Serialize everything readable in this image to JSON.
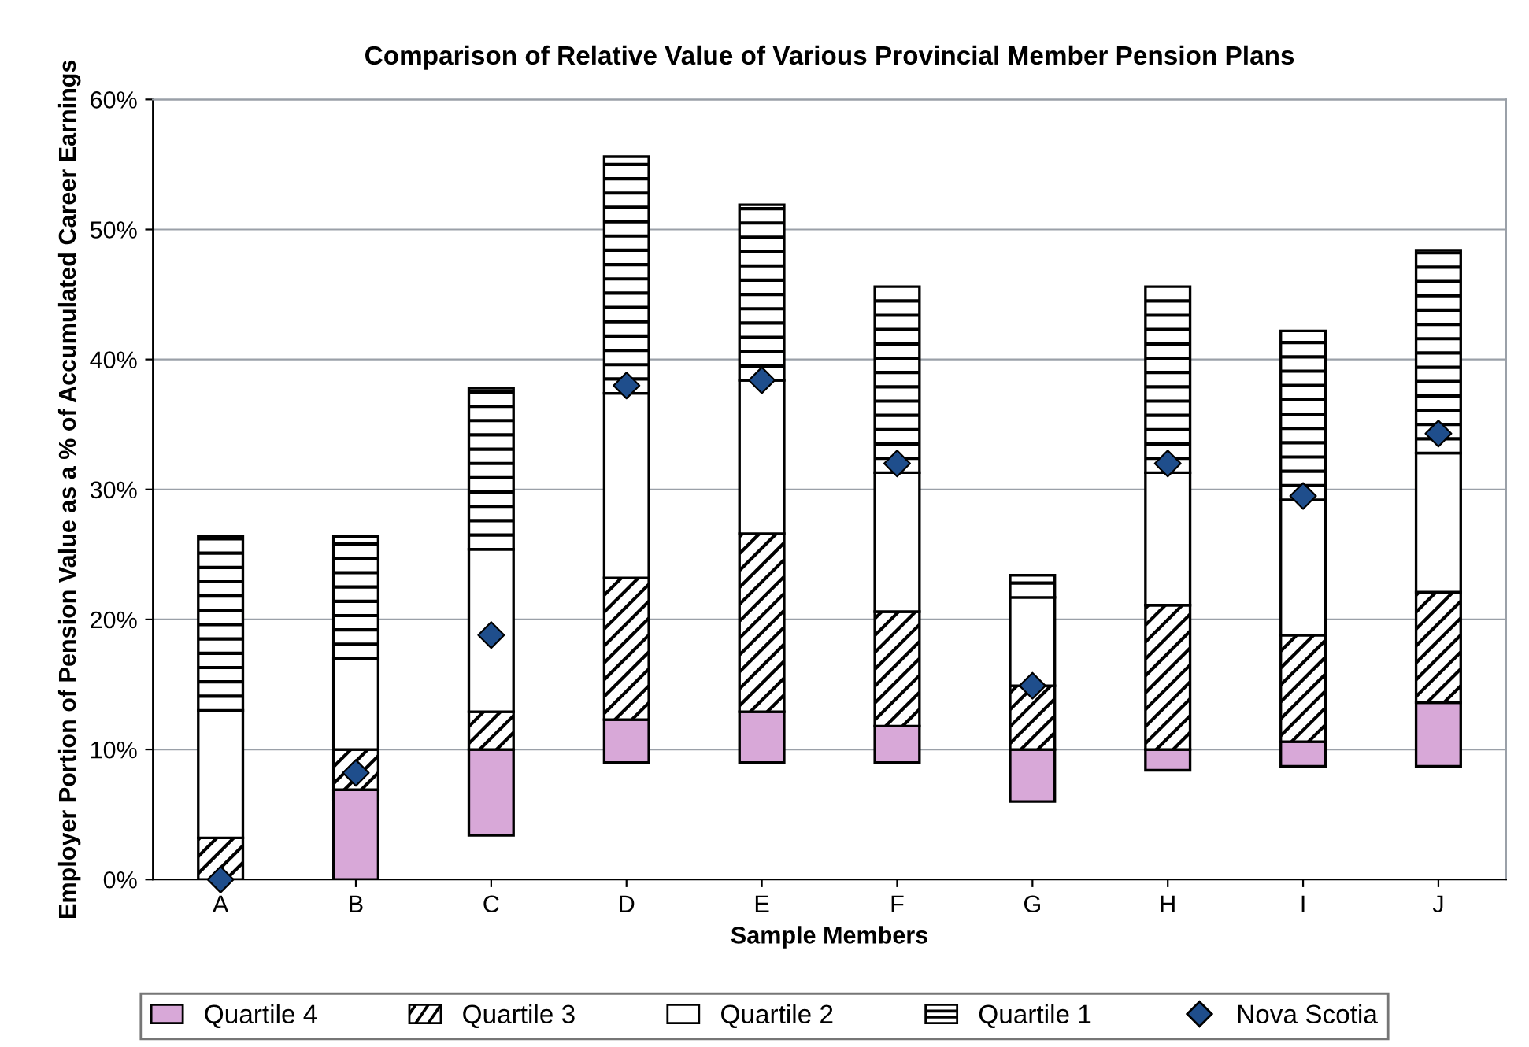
{
  "chart_data": {
    "type": "bar",
    "stacked": true,
    "title": "Comparison of Relative Value of Various Provincial Member Pension Plans",
    "xlabel": "Sample Members",
    "ylabel": "Employer Portion of Pension Value as a % of Accumulated Career Earnings",
    "categories": [
      "A",
      "B",
      "C",
      "D",
      "E",
      "F",
      "G",
      "H",
      "I",
      "J"
    ],
    "series": [
      {
        "name": "Quartile 4",
        "color": "#d8a8d8",
        "base": [
          null,
          0,
          3.4,
          9,
          9,
          9,
          6,
          8.4,
          8.7,
          8.7
        ],
        "values": [
          null,
          6.9,
          6.6,
          3.3,
          3.9,
          2.8,
          4.0,
          1.6,
          1.9,
          4.9
        ]
      },
      {
        "name": "Quartile 3",
        "color": "#ffffff",
        "values": [
          3.2,
          3.1,
          2.9,
          10.9,
          13.7,
          8.8,
          4.9,
          11.1,
          8.2,
          8.5
        ]
      },
      {
        "name": "Quartile 2",
        "color": "#ffffff",
        "values": [
          9.8,
          7.0,
          12.5,
          14.2,
          11.8,
          10.7,
          6.8,
          10.2,
          10.4,
          10.7
        ]
      },
      {
        "name": "Quartile 1",
        "color": "#ffffff",
        "values": [
          13.4,
          9.4,
          12.4,
          18.2,
          13.5,
          14.3,
          1.7,
          14.3,
          13.0,
          15.6
        ]
      },
      {
        "name": "Nova Scotia",
        "type": "scatter",
        "color": "#1f4e8c",
        "marker": "diamond",
        "x": [
          "A",
          "B",
          "C",
          "D",
          "E",
          "F",
          "G",
          "H",
          "I",
          "J"
        ],
        "values": [
          0,
          8.2,
          18.8,
          38,
          38.4,
          32,
          14.9,
          32,
          29.5,
          34.3
        ]
      }
    ],
    "ylim": [
      0,
      60
    ],
    "yticks": [
      {
        "value": 0,
        "label": "0%"
      },
      {
        "value": 10,
        "label": "10%"
      },
      {
        "value": 20,
        "label": "20%"
      },
      {
        "value": 30,
        "label": "30%"
      },
      {
        "value": 40,
        "label": "40%"
      },
      {
        "value": 50,
        "label": "50%"
      },
      {
        "value": 60,
        "label": "60%"
      }
    ],
    "grid": "y",
    "legend": "bottom"
  }
}
